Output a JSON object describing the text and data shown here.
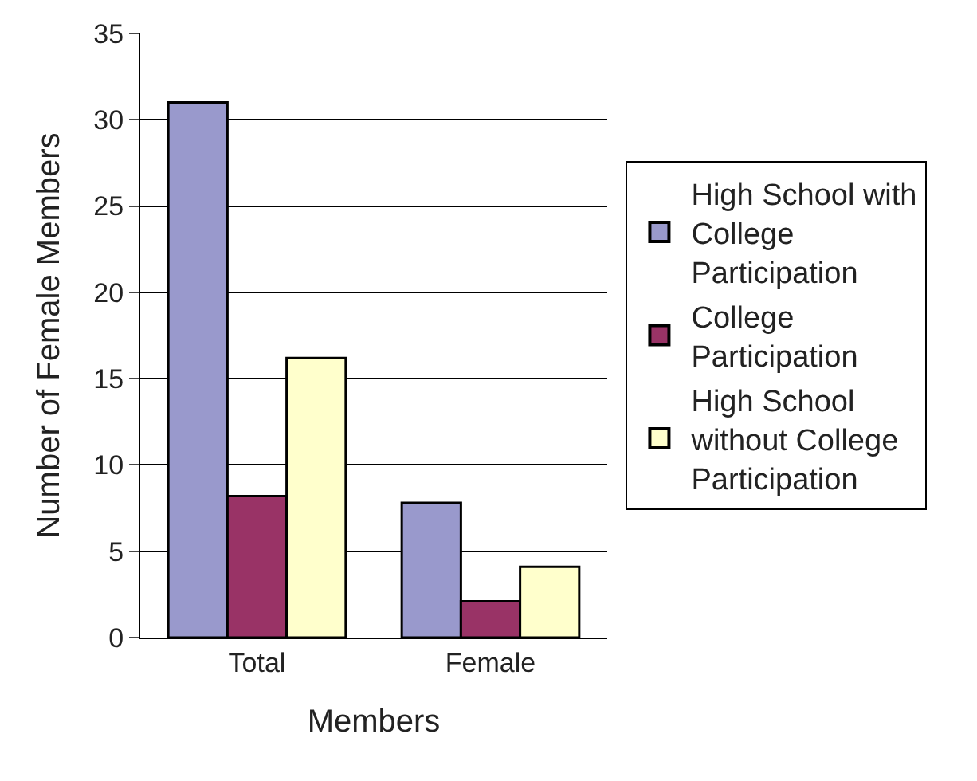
{
  "chart_data": {
    "type": "bar",
    "xlabel": "Members",
    "ylabel": "Number of Female Members",
    "categories": [
      "Total",
      "Female"
    ],
    "series": [
      {
        "name": "High School with College Participation",
        "color": "#9999cc",
        "values": [
          31,
          7.8
        ]
      },
      {
        "name": "College Participation",
        "color": "#993366",
        "values": [
          8.2,
          2.1
        ]
      },
      {
        "name": "High School without College Participation",
        "color": "#ffffcc",
        "values": [
          16.2,
          4.1
        ]
      }
    ],
    "ylim": [
      0,
      35
    ],
    "yticks": [
      0,
      5,
      10,
      15,
      20,
      25,
      30,
      35
    ],
    "grid": "y",
    "legend": "right"
  }
}
